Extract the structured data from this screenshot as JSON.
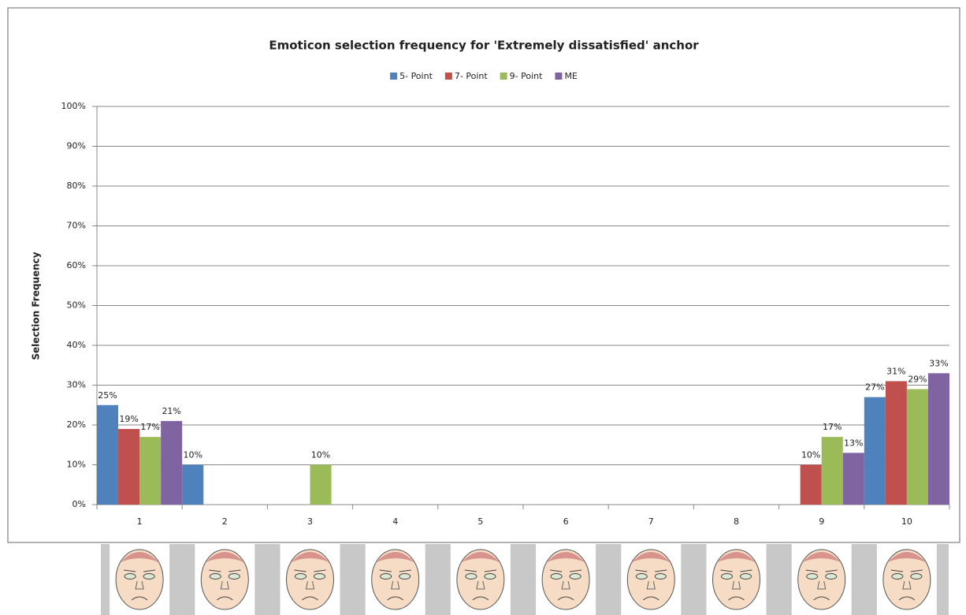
{
  "chart_data": {
    "type": "bar",
    "title": "Emoticon selection frequency for 'Extremely dissatisfied' anchor",
    "y_label": "Selection Frequency",
    "categories": [
      "1",
      "2",
      "3",
      "4",
      "5",
      "6",
      "7",
      "8",
      "9",
      "10"
    ],
    "series": [
      {
        "name": "5- Point",
        "color": "#4f81bd",
        "values": [
          25,
          10,
          null,
          null,
          null,
          null,
          null,
          null,
          null,
          27
        ],
        "value_labels": [
          "25%",
          "10%",
          null,
          null,
          null,
          null,
          null,
          null,
          null,
          "27%"
        ]
      },
      {
        "name": "7- Point",
        "color": "#c0504d",
        "values": [
          19,
          null,
          null,
          null,
          null,
          null,
          null,
          null,
          10,
          31
        ],
        "value_labels": [
          "19%",
          null,
          null,
          null,
          null,
          null,
          null,
          null,
          "10%",
          "31%"
        ]
      },
      {
        "name": "9- Point",
        "color": "#9bbb59",
        "values": [
          17,
          null,
          10,
          null,
          null,
          null,
          null,
          null,
          17,
          29
        ],
        "value_labels": [
          "17%",
          null,
          "10%",
          null,
          null,
          null,
          null,
          null,
          "17%",
          "29%"
        ]
      },
      {
        "name": "ME",
        "color": "#8064a2",
        "values": [
          21,
          null,
          null,
          null,
          null,
          null,
          null,
          null,
          13,
          33
        ],
        "value_labels": [
          "21%",
          null,
          null,
          null,
          null,
          null,
          null,
          null,
          "13%",
          "33%"
        ]
      }
    ],
    "ylim": [
      0,
      100
    ],
    "yticks": [
      {
        "value": 0,
        "label": "0%"
      },
      {
        "value": 10,
        "label": "10%"
      },
      {
        "value": 20,
        "label": "20%"
      },
      {
        "value": 30,
        "label": "30%"
      },
      {
        "value": 40,
        "label": "40%"
      },
      {
        "value": 50,
        "label": "50%"
      },
      {
        "value": 60,
        "label": "60%"
      },
      {
        "value": 70,
        "label": "70%"
      },
      {
        "value": 80,
        "label": "80%"
      },
      {
        "value": 90,
        "label": "90%"
      },
      {
        "value": 100,
        "label": "100%"
      }
    ],
    "grid": true,
    "legend": "top"
  }
}
